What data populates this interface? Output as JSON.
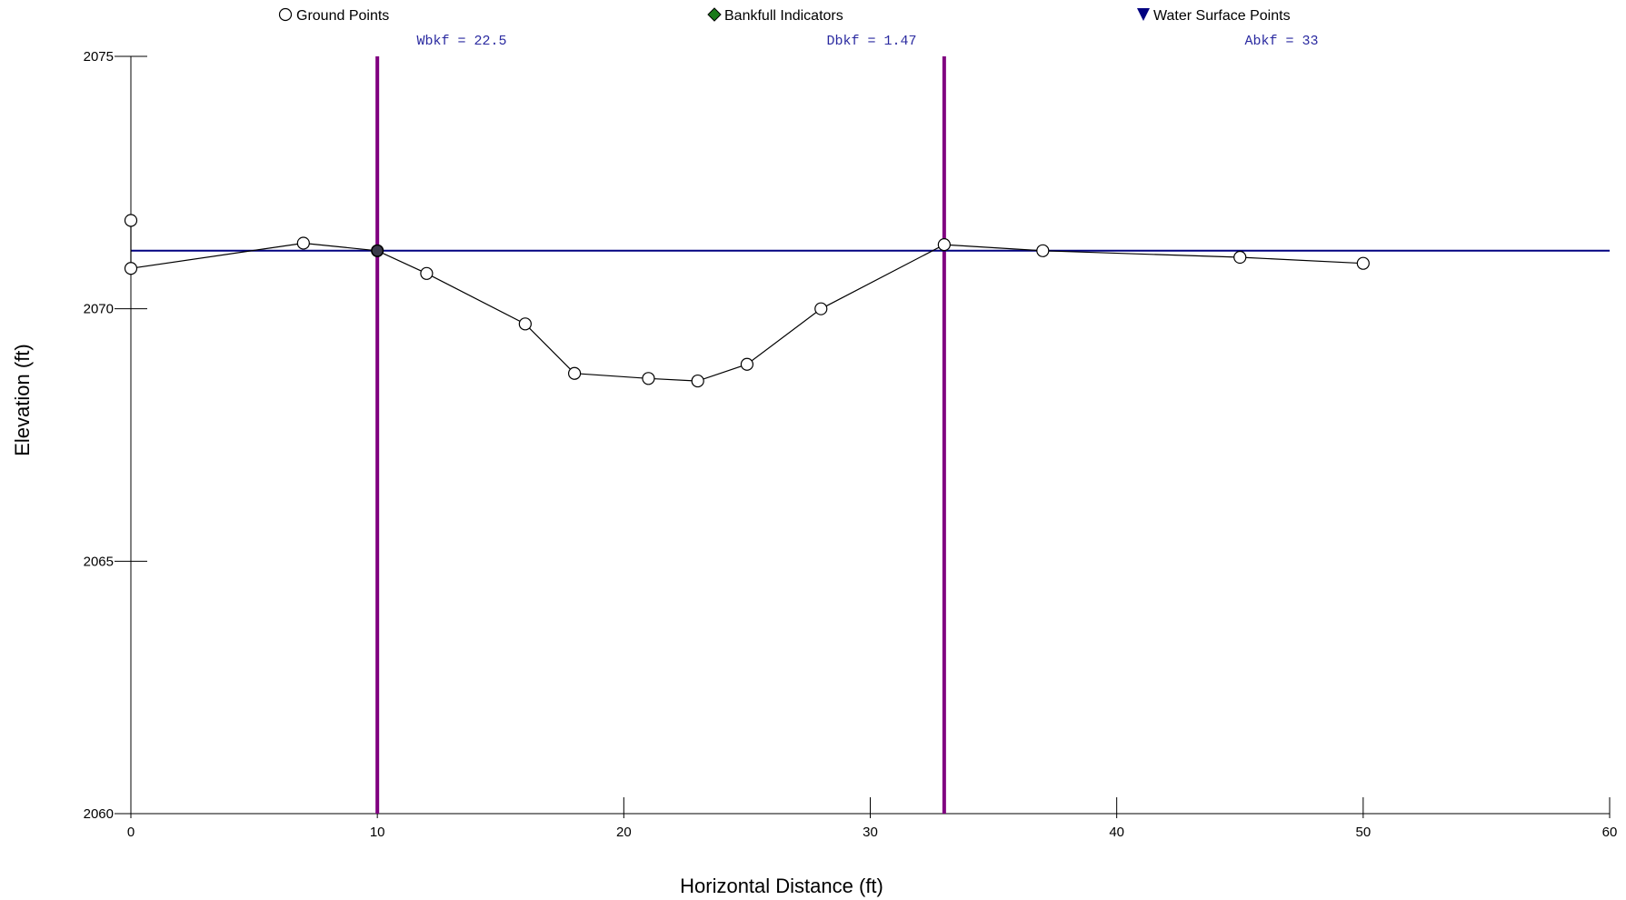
{
  "chart_data": {
    "type": "scatter",
    "xlabel": "Horizontal Distance (ft)",
    "ylabel": "Elevation (ft)",
    "xlim": [
      0,
      60
    ],
    "ylim": [
      2060,
      2075
    ],
    "x_ticks": [
      0,
      10,
      20,
      30,
      40,
      50,
      60
    ],
    "y_ticks": [
      2060,
      2065,
      2070,
      2075
    ],
    "legend": {
      "placement": "top",
      "entries": [
        "Ground Points",
        "Bankfull Indicators",
        "Water Surface Points"
      ]
    },
    "ground_points": {
      "name": "Ground Points",
      "x": [
        0,
        0,
        7,
        10,
        12,
        16,
        18,
        21,
        23,
        25,
        28,
        33,
        37,
        45,
        50
      ],
      "y": [
        2071.75,
        2070.8,
        2071.3,
        2071.15,
        2070.7,
        2069.7,
        2068.72,
        2068.62,
        2068.57,
        2068.9,
        2070.0,
        2071.27,
        2071.15,
        2071.02,
        2070.9
      ]
    },
    "bankfull_line": {
      "y": 2071.15,
      "x_start": 0,
      "x_end": 60
    },
    "bankfull_limits": {
      "x": [
        10,
        33
      ]
    },
    "stats": [
      {
        "text": "Wbkf = 22.5"
      },
      {
        "text": "Dbkf = 1.47"
      },
      {
        "text": "Abkf = 33"
      }
    ],
    "colors": {
      "ground": "#000000",
      "bankfull_line": "#000080",
      "limit_lines": "#800080",
      "bankfull_indicator": "#1a7a1a",
      "stats_text": "#2a2aa0"
    }
  }
}
